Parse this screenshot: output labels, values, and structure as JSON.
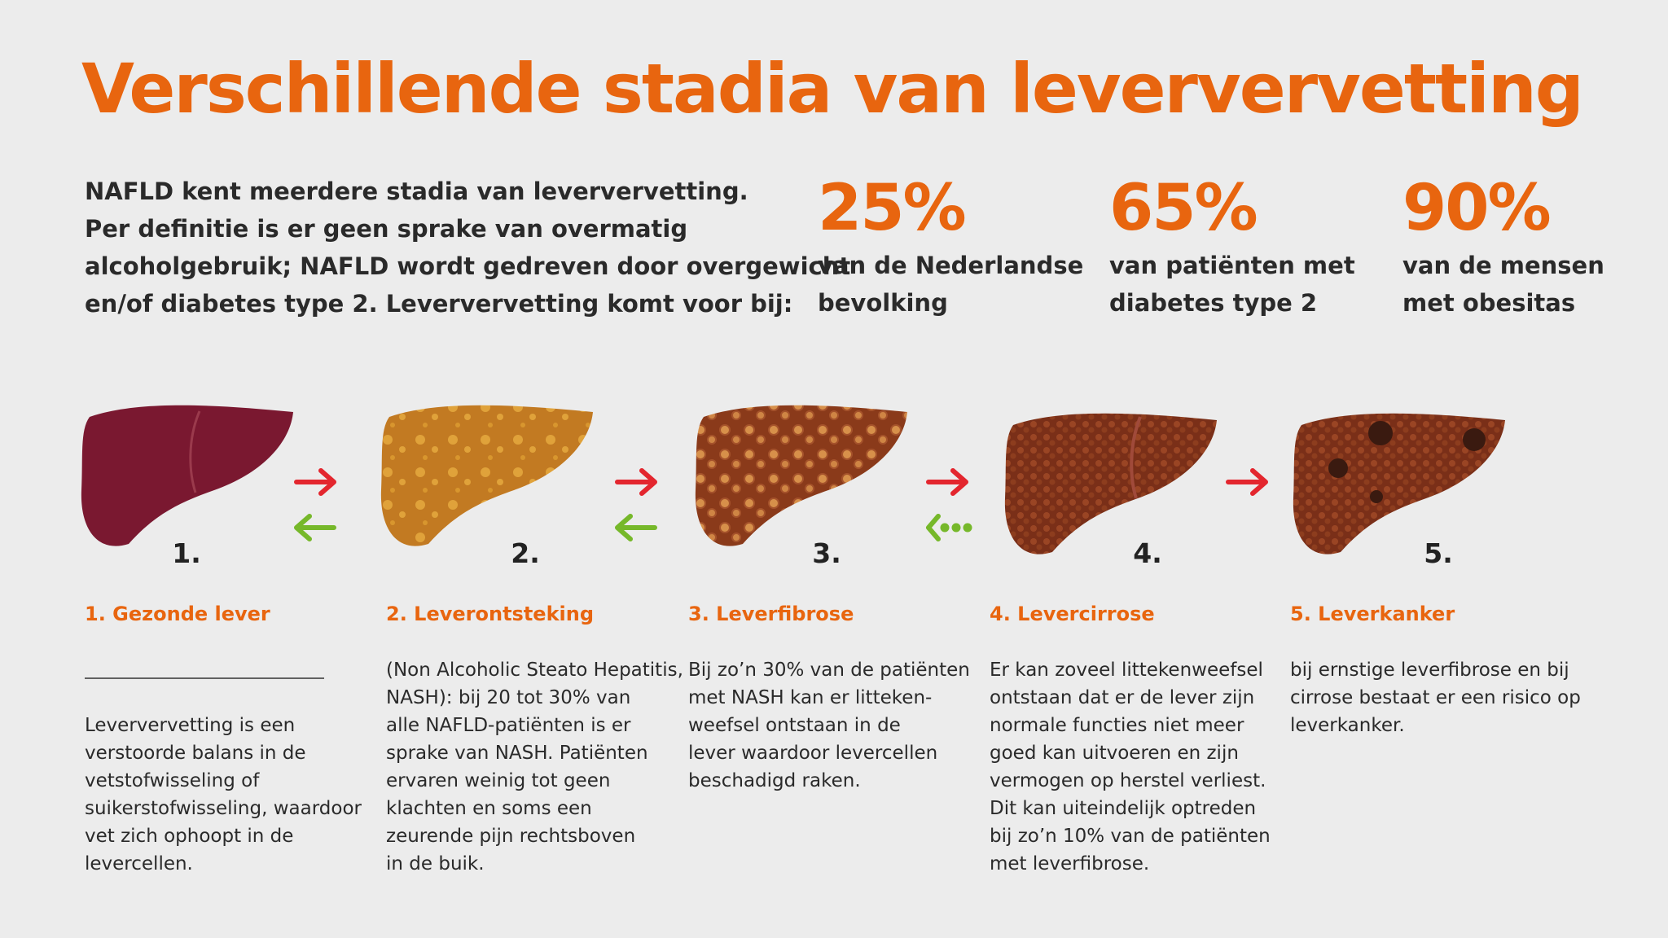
{
  "header": {
    "title": "Verschillende stadia van leververvetting"
  },
  "intro": {
    "lines": [
      "NAFLD kent meerdere stadia van leververvetting.",
      "Per definitie is er geen sprake van overmatig",
      "alcoholgebruik; NAFLD wordt gedreven door overgewicht",
      "en/of diabetes type 2. Leververvetting komt voor bij:"
    ]
  },
  "stats": [
    {
      "value": "25%",
      "lines": [
        "van de Nederlandse",
        "bevolking"
      ]
    },
    {
      "value": "65%",
      "lines": [
        "van patiënten met",
        "diabetes type 2"
      ]
    },
    {
      "value": "90%",
      "lines": [
        "van de mensen",
        "met obesitas"
      ]
    }
  ],
  "stages": [
    {
      "number": "1.",
      "title": "1. Gezonde lever",
      "lines": [
        "Leververvetting is een",
        "verstoorde balans in de",
        "vetstofwisseling of",
        "suikerstofwisseling, waardoor",
        "vet zich ophoopt in de",
        "levercellen."
      ]
    },
    {
      "number": "2.",
      "title": "2. Leverontsteking",
      "lines": [
        "(Non Alcoholic Steato Hepatitis,",
        "NASH): bij 20 tot 30% van",
        "alle NAFLD-patiënten is er",
        "sprake van NASH. Patiënten",
        "ervaren weinig tot geen",
        "klachten en soms een",
        "zeurende pijn rechtsboven",
        "in de buik."
      ]
    },
    {
      "number": "3.",
      "title": "3. Leverfibrose",
      "lines": [
        "Bij zo’n 30% van de patiënten",
        "met NASH kan er litteken-",
        "weefsel ontstaan in de",
        "lever waardoor levercellen",
        "beschadigd raken."
      ]
    },
    {
      "number": "4.",
      "title": "4. Levercirrose",
      "lines": [
        "Er kan zoveel littekenweefsel",
        "ontstaan dat er de lever zijn",
        "normale functies niet meer",
        "goed kan uitvoeren en zijn",
        "vermogen op herstel verliest.",
        "Dit kan uiteindelijk optreden",
        "bij zo’n 10% van de patiënten",
        "met leverfibrose."
      ]
    },
    {
      "number": "5.",
      "title": "5. Leverkanker",
      "lines": [
        "bij ernstige leverfibrose en bij",
        "cirrose bestaat er een risico op",
        "leverkanker."
      ]
    }
  ]
}
